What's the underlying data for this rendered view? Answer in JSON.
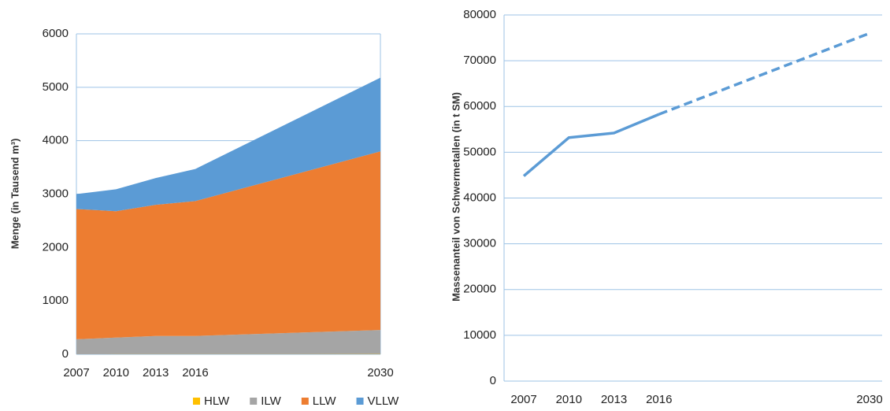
{
  "chart_data": [
    {
      "type": "stacked_area",
      "y_label": "Menge (in Tausend m³)",
      "x": [
        2007,
        2010,
        2013,
        2016,
        2030
      ],
      "xlim": [
        2007,
        2030
      ],
      "xticks": [
        2007,
        2010,
        2013,
        2016,
        2030
      ],
      "ylim": [
        0,
        6000
      ],
      "yticks": [
        0,
        1000,
        2000,
        3000,
        4000,
        5000,
        6000
      ],
      "grid": true,
      "legend": "bottom",
      "series": [
        {
          "name": "HLW",
          "color": "#ffc000",
          "values": [
            2,
            3,
            3,
            3,
            5
          ]
        },
        {
          "name": "ILW",
          "color": "#a5a5a5",
          "values": [
            280,
            310,
            340,
            340,
            450
          ]
        },
        {
          "name": "LLW",
          "color": "#ed7d31",
          "values": [
            2438,
            2367,
            2457,
            2527,
            3345
          ]
        },
        {
          "name": "VLLW",
          "color": "#5b9bd5",
          "values": [
            280,
            410,
            500,
            600,
            1380
          ]
        }
      ]
    },
    {
      "type": "line",
      "y_label": "Massenanteil von Schwermetallen (in t SM)",
      "x": [
        2007,
        2010,
        2013,
        2016,
        2030
      ],
      "xlim": [
        2007,
        2030
      ],
      "xticks": [
        2007,
        2010,
        2013,
        2016,
        2030
      ],
      "ylim": [
        0,
        80000
      ],
      "yticks": [
        0,
        10000,
        20000,
        30000,
        40000,
        50000,
        60000,
        70000,
        80000
      ],
      "grid": true,
      "color": "#5b9bd5",
      "projection_from_x": 2016,
      "values": [
        44800,
        53200,
        54200,
        58300,
        76000
      ]
    }
  ]
}
